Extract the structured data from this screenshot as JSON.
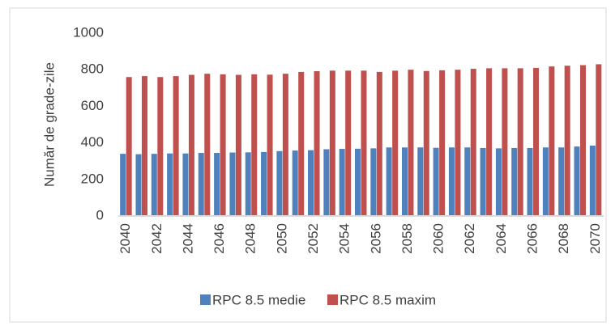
{
  "chart_data": {
    "type": "bar",
    "y_label": "Număr de grade-zile",
    "categories": [
      "2040",
      null,
      "2042",
      null,
      "2044",
      null,
      "2046",
      null,
      "2048",
      null,
      "2050",
      null,
      "2052",
      null,
      "2054",
      null,
      "2056",
      null,
      "2058",
      null,
      "2060",
      null,
      "2062",
      null,
      "2064",
      null,
      "2066",
      null,
      "2068",
      null,
      "2070"
    ],
    "series": [
      {
        "name": "RPC 8.5 medie",
        "color": "#4f81bd",
        "values": [
          340,
          338,
          340,
          342,
          342,
          345,
          345,
          347,
          348,
          350,
          355,
          358,
          360,
          365,
          367,
          368,
          370,
          375,
          375,
          375,
          373,
          375,
          375,
          372,
          370,
          372,
          372,
          375,
          375,
          380,
          385
        ]
      },
      {
        "name": "RPC 8.5 maxim",
        "color": "#c0504d",
        "values": [
          760,
          765,
          760,
          765,
          772,
          778,
          775,
          772,
          775,
          773,
          778,
          788,
          792,
          795,
          795,
          795,
          788,
          795,
          800,
          793,
          797,
          800,
          805,
          808,
          808,
          808,
          810,
          818,
          822,
          825,
          830
        ]
      }
    ],
    "ylim": [
      0,
      1000
    ],
    "yticks": [
      0,
      200,
      400,
      600,
      800,
      1000
    ],
    "legend": "bottom"
  }
}
